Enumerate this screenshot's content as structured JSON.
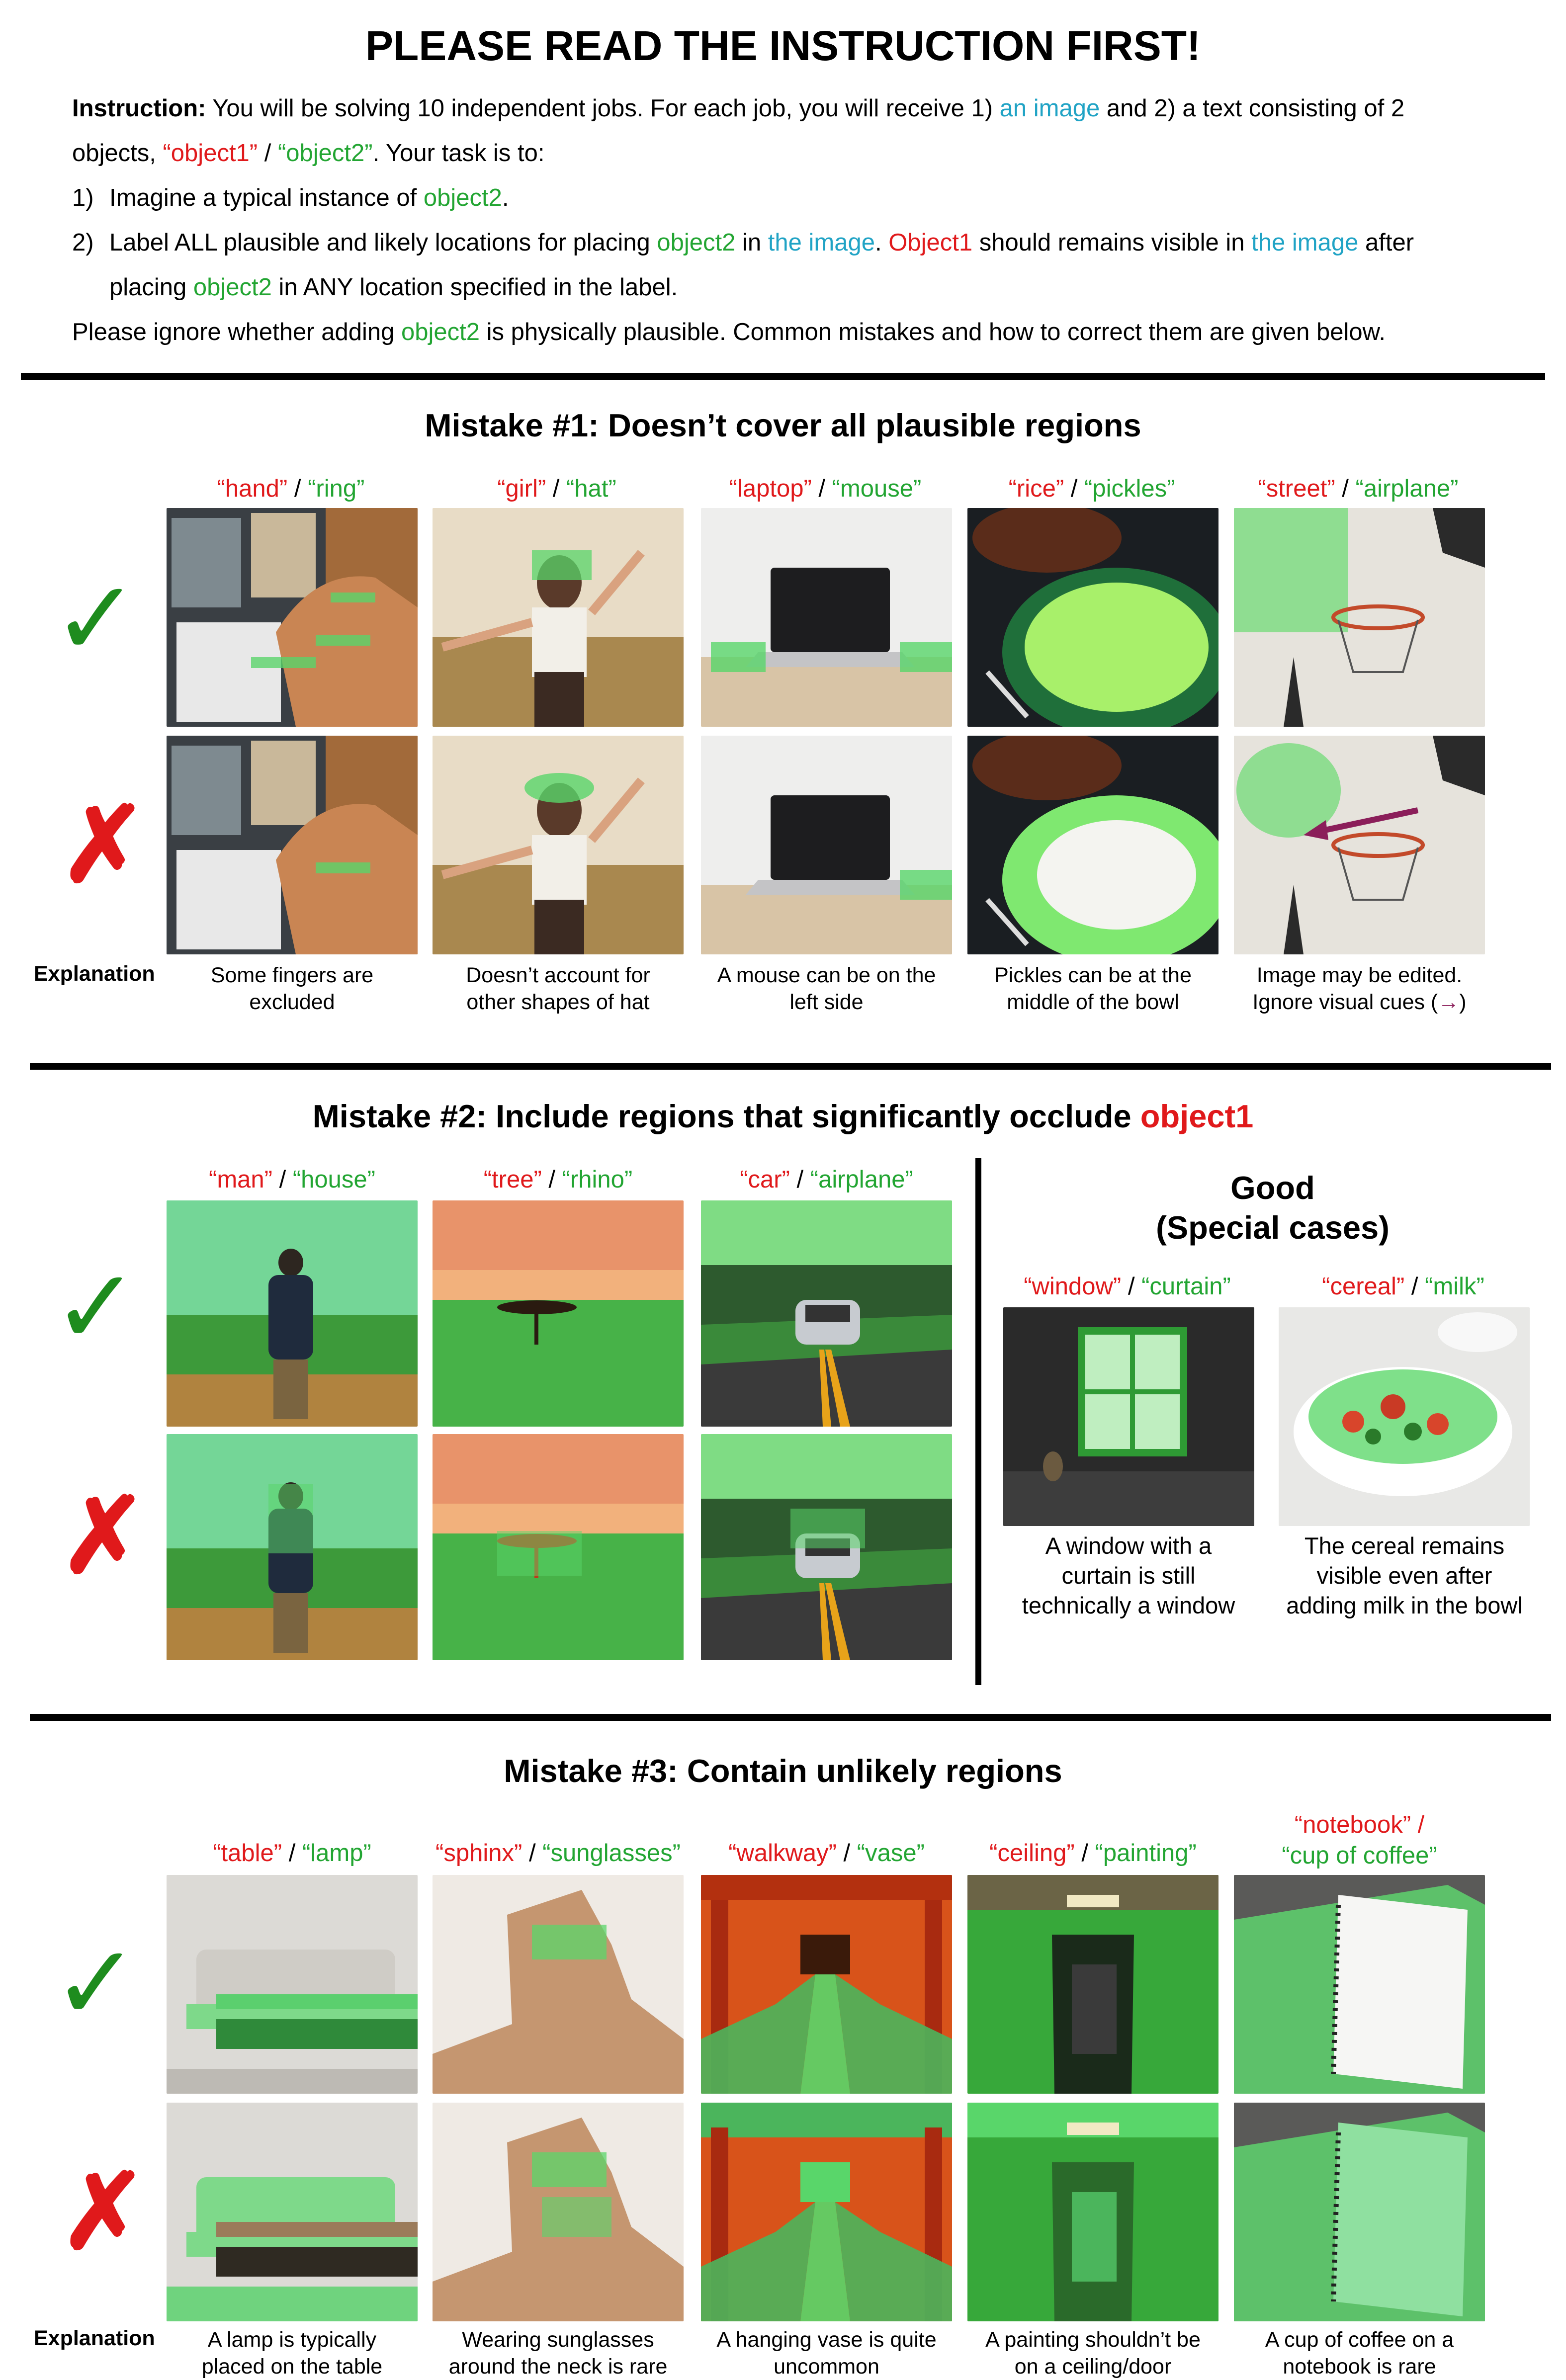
{
  "title": "PLEASE READ THE INSTRUCTION FIRST!",
  "instruction": {
    "label": "Instruction:",
    "l1_a": " You will be solving 10 independent jobs. For each job, you will receive 1) ",
    "an_image": "an image",
    "l1_b": " and 2) a text consisting of 2",
    "l2_a": "objects, ",
    "object1_q": "“object1”",
    "slash": " / ",
    "object2_q": "“object2”",
    "l2_b": ". Your task is to:",
    "s1_num": "1)",
    "s1_a": "Imagine a typical instance of ",
    "object2": "object2",
    "period": ".",
    "s2_num": "2)",
    "s2_a": "Label ALL plausible and likely locations for placing ",
    "s2_b": " in ",
    "the_image": "the image",
    "s2_c": ". ",
    "Object1": "Object1",
    "s2_d": " should remains visible in ",
    "s2_e": " after",
    "s2_f": "placing ",
    "s2_g": " in ANY location specified in the label.",
    "l5_a": "Please ignore whether adding ",
    "l5_b": " is physically plausible. Common mistakes and how to correct them are given below."
  },
  "marks": {
    "check": "✓",
    "cross": "✗",
    "explanation": "Explanation"
  },
  "mistake1": {
    "title": "Mistake #1: Doesn’t cover all plausible regions",
    "items": [
      {
        "o1": "“hand”",
        "o2": "“ring”",
        "expl": [
          "Some fingers are",
          "excluded"
        ]
      },
      {
        "o1": "“girl”",
        "o2": "“hat”",
        "expl": [
          "Doesn’t account for",
          "other shapes of hat"
        ]
      },
      {
        "o1": "“laptop”",
        "o2": "“mouse”",
        "expl": [
          "A mouse can be on the",
          "left side"
        ]
      },
      {
        "o1": "“rice”",
        "o2": "“pickles”",
        "expl": [
          "Pickles can be at the",
          "middle of the bowl"
        ]
      },
      {
        "o1": "“street”",
        "o2": "“airplane”",
        "expl": [
          "Image may be edited.",
          "Ignore visual cues (",
          "→",
          ")"
        ]
      }
    ]
  },
  "mistake2": {
    "title_a": "Mistake #2: Include regions that significantly occlude ",
    "title_b": "object1",
    "items": [
      {
        "o1": "“man”",
        "o2": "“house”"
      },
      {
        "o1": "“tree”",
        "o2": "“rhino”"
      },
      {
        "o1": "“car”",
        "o2": "“airplane”"
      }
    ],
    "good_title": "Good",
    "good_sub": "(Special cases)",
    "good_items": [
      {
        "o1": "“window”",
        "o2": "“curtain”",
        "expl": [
          "A window with a",
          "curtain is still",
          "technically a window"
        ]
      },
      {
        "o1": "“cereal”",
        "o2": "“milk”",
        "expl": [
          "The cereal remains",
          "visible even after",
          "adding milk in the bowl"
        ]
      }
    ]
  },
  "mistake3": {
    "title": "Mistake #3: Contain unlikely regions",
    "items": [
      {
        "o1": "“table”",
        "o2": "“lamp”",
        "expl": [
          "A lamp is typically",
          "placed on the table"
        ]
      },
      {
        "o1": "“sphinx”",
        "o2": "“sunglasses”",
        "expl": [
          "Wearing sunglasses",
          "around the neck is rare"
        ]
      },
      {
        "o1": "“walkway”",
        "o2": "“vase”",
        "expl": [
          "A hanging vase is quite",
          "uncommon"
        ]
      },
      {
        "o1": "“ceiling”",
        "o2": "“painting”",
        "expl": [
          "A painting shouldn’t be",
          "on a ceiling/door"
        ]
      },
      {
        "o1": "“notebook” /",
        "o2": "“cup of coffee”",
        "expl": [
          "A cup of coffee on a",
          "notebook is rare"
        ]
      }
    ]
  }
}
